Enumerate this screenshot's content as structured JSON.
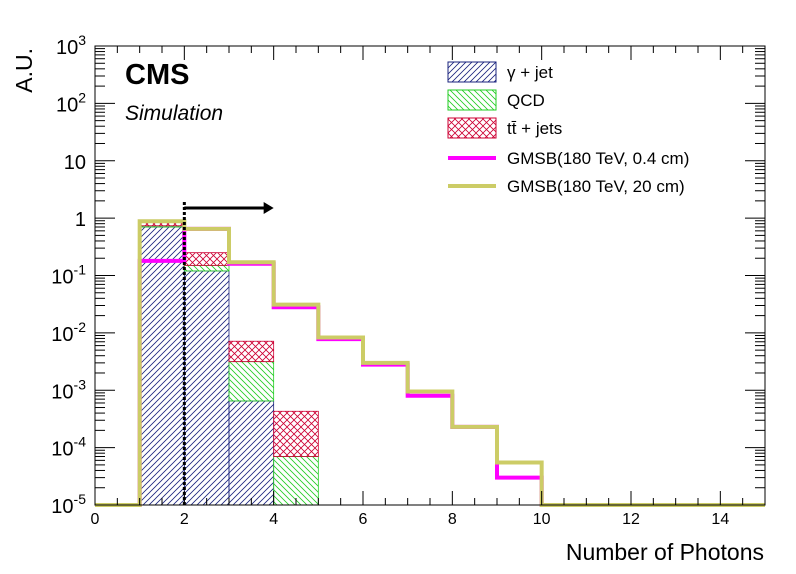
{
  "chart_data": {
    "type": "histogram",
    "xlabel": "Number of Photons",
    "ylabel": "A.U.",
    "xlim": [
      0,
      15
    ],
    "ylim": [
      1e-05,
      1000
    ],
    "yscale": "log",
    "bin_edges": [
      0,
      1,
      2,
      3,
      4,
      5,
      6,
      7,
      8,
      9,
      10,
      11,
      12,
      13,
      14,
      15
    ],
    "x_ticks": [
      "0",
      "2",
      "4",
      "6",
      "8",
      "10",
      "12",
      "14"
    ],
    "y_ticks": [
      {
        "base": "10",
        "exp": "-5"
      },
      {
        "base": "10",
        "exp": "-4"
      },
      {
        "base": "10",
        "exp": "-3"
      },
      {
        "base": "10",
        "exp": "-2"
      },
      {
        "base": "10",
        "exp": "-1"
      },
      {
        "base": "1",
        "exp": ""
      },
      {
        "base": "10",
        "exp": ""
      },
      {
        "base": "10",
        "exp": "2"
      },
      {
        "base": "10",
        "exp": "3"
      }
    ],
    "labels": {
      "experiment": "CMS",
      "subtitle": "Simulation"
    },
    "cut": {
      "x": 2,
      "direction": "right"
    },
    "stacked_series": [
      {
        "name": "γ + jet",
        "color": "#1a237e",
        "pattern": "diag",
        "values": [
          0,
          0.7,
          0.12,
          0.00065,
          0,
          0,
          0,
          0,
          0,
          0,
          0,
          0,
          0,
          0,
          0
        ]
      },
      {
        "name": "QCD",
        "color": "#22cc22",
        "pattern": "anti",
        "values": [
          0,
          0.035,
          0.03,
          0.0025,
          7e-05,
          0,
          0,
          0,
          0,
          0,
          0,
          0,
          0,
          0,
          0
        ]
      },
      {
        "name": "tt̄ + jets",
        "color": "#cc0033",
        "pattern": "cross",
        "values": [
          0,
          0.15,
          0.1,
          0.004,
          0.00036,
          0,
          0,
          0,
          0,
          0,
          0,
          0,
          0,
          0,
          0
        ]
      }
    ],
    "line_series": [
      {
        "name": "GMSB(180 TeV, 0.4 cm)",
        "color": "#ff00ff",
        "values": [
          0,
          0.18,
          0.65,
          0.16,
          0.028,
          0.0078,
          0.0028,
          0.0008,
          0.00023,
          3e-05,
          0,
          0,
          0,
          0,
          0
        ]
      },
      {
        "name": "GMSB(180 TeV, 20 cm)",
        "color": "#cccc66",
        "values": [
          0,
          0.88,
          0.65,
          0.17,
          0.031,
          0.0083,
          0.003,
          0.00095,
          0.00023,
          5.5e-05,
          0,
          0,
          0,
          0,
          0
        ]
      }
    ]
  }
}
